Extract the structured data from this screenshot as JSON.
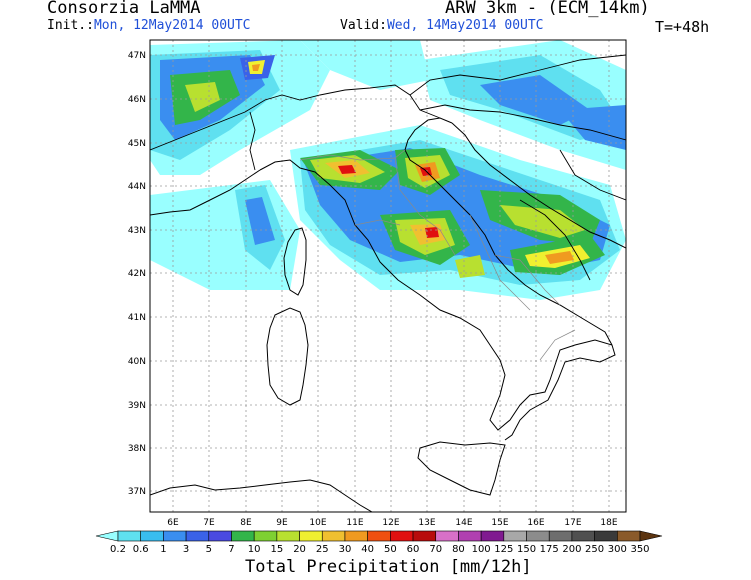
{
  "header": {
    "organization": "Consorzia LaMMA",
    "model": "ARW 3km - (ECM_14km)",
    "init_label": "Init.:",
    "init_value": "Mon, 12May2014 00UTC",
    "valid_label": "Valid:",
    "valid_value": "Wed, 14May2014 00UTC",
    "forecast_step": "T=+48h"
  },
  "map": {
    "lat_labels": [
      "47N",
      "46N",
      "45N",
      "44N",
      "43N",
      "42N",
      "41N",
      "40N",
      "39N",
      "38N",
      "37N"
    ],
    "lon_labels": [
      "6E",
      "7E",
      "8E",
      "9E",
      "10E",
      "11E",
      "12E",
      "13E",
      "14E",
      "15E",
      "16E",
      "17E",
      "18E"
    ]
  },
  "colorbar": {
    "title": "Total Precipitation [mm/12h]",
    "levels": [
      "0.2",
      "0.6",
      "1",
      "3",
      "5",
      "7",
      "10",
      "15",
      "20",
      "25",
      "30",
      "40",
      "50",
      "60",
      "70",
      "80",
      "100",
      "125",
      "150",
      "175",
      "200",
      "250",
      "300",
      "350"
    ],
    "colors": [
      "#99ffff",
      "#5fe0f0",
      "#39bdf0",
      "#3a8ef0",
      "#3a62e8",
      "#4a4ae0",
      "#33b54a",
      "#7ed032",
      "#b8e030",
      "#f0f030",
      "#f0c030",
      "#f09a20",
      "#f05010",
      "#e01010",
      "#b80c0c",
      "#d870c8",
      "#b040b0",
      "#801a90",
      "#a8a8a8",
      "#8c8c8c",
      "#6e6e6e",
      "#505050",
      "#3a3a3a",
      "#8a5a2a",
      "#5c3410"
    ]
  }
}
